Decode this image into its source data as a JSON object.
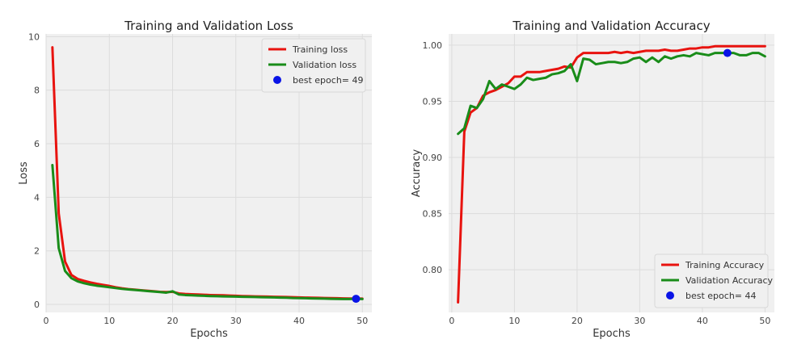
{
  "chart_data": [
    {
      "type": "line",
      "title": "Training and Validation Loss",
      "xlabel": "Epochs",
      "ylabel": "Loss",
      "xlim": [
        0,
        51.5
      ],
      "ylim": [
        -0.3,
        10.1
      ],
      "xticks": [
        0,
        10,
        20,
        30,
        40,
        50
      ],
      "yticks": [
        0,
        2,
        4,
        6,
        8,
        10
      ],
      "grid": true,
      "legend_position": "top-right",
      "x": [
        1,
        2,
        3,
        4,
        5,
        6,
        7,
        8,
        9,
        10,
        11,
        12,
        13,
        14,
        15,
        16,
        17,
        18,
        19,
        20,
        21,
        22,
        23,
        24,
        25,
        26,
        27,
        28,
        29,
        30,
        31,
        32,
        33,
        34,
        35,
        36,
        37,
        38,
        39,
        40,
        41,
        42,
        43,
        44,
        45,
        46,
        47,
        48,
        49,
        50
      ],
      "series": [
        {
          "name": "Training loss",
          "color": "#e8130f",
          "values": [
            9.6,
            3.4,
            1.6,
            1.1,
            0.95,
            0.88,
            0.82,
            0.77,
            0.73,
            0.69,
            0.64,
            0.6,
            0.57,
            0.55,
            0.53,
            0.51,
            0.49,
            0.47,
            0.46,
            0.47,
            0.41,
            0.39,
            0.38,
            0.37,
            0.36,
            0.35,
            0.345,
            0.34,
            0.33,
            0.32,
            0.31,
            0.305,
            0.3,
            0.295,
            0.29,
            0.285,
            0.28,
            0.275,
            0.27,
            0.26,
            0.255,
            0.25,
            0.245,
            0.24,
            0.235,
            0.23,
            0.225,
            0.22,
            0.22,
            0.215
          ]
        },
        {
          "name": "Validation loss",
          "color": "#198c19",
          "values": [
            5.2,
            2.1,
            1.25,
            0.98,
            0.86,
            0.79,
            0.74,
            0.7,
            0.67,
            0.64,
            0.61,
            0.58,
            0.56,
            0.54,
            0.52,
            0.5,
            0.48,
            0.46,
            0.44,
            0.49,
            0.37,
            0.35,
            0.34,
            0.33,
            0.32,
            0.31,
            0.305,
            0.3,
            0.295,
            0.29,
            0.285,
            0.28,
            0.275,
            0.27,
            0.265,
            0.26,
            0.255,
            0.25,
            0.24,
            0.235,
            0.23,
            0.225,
            0.22,
            0.215,
            0.21,
            0.205,
            0.2,
            0.2,
            0.21,
            0.2
          ]
        }
      ],
      "best_point": {
        "label": "best epoch= 49",
        "x": 49,
        "y": 0.21,
        "color": "#0a14e6"
      }
    },
    {
      "type": "line",
      "title": "Training and Validation Accuracy",
      "xlabel": "Epochs",
      "ylabel": "Accuracy",
      "xlim": [
        -0.5,
        51.5
      ],
      "ylim": [
        0.762,
        1.01
      ],
      "xticks": [
        0,
        10,
        20,
        30,
        40,
        50
      ],
      "yticks": [
        0.8,
        0.85,
        0.9,
        0.95,
        1.0
      ],
      "ytick_labels": [
        "0.80",
        "0.85",
        "0.90",
        "0.95",
        "1.00"
      ],
      "grid": true,
      "legend_position": "bottom-right",
      "x": [
        1,
        2,
        3,
        4,
        5,
        6,
        7,
        8,
        9,
        10,
        11,
        12,
        13,
        14,
        15,
        16,
        17,
        18,
        19,
        20,
        21,
        22,
        23,
        24,
        25,
        26,
        27,
        28,
        29,
        30,
        31,
        32,
        33,
        34,
        35,
        36,
        37,
        38,
        39,
        40,
        41,
        42,
        43,
        44,
        45,
        46,
        47,
        48,
        49,
        50
      ],
      "series": [
        {
          "name": "Training Accuracy",
          "color": "#e8130f",
          "values": [
            0.771,
            0.923,
            0.94,
            0.944,
            0.955,
            0.958,
            0.96,
            0.963,
            0.966,
            0.972,
            0.972,
            0.976,
            0.976,
            0.976,
            0.977,
            0.978,
            0.979,
            0.981,
            0.98,
            0.989,
            0.993,
            0.993,
            0.993,
            0.993,
            0.993,
            0.994,
            0.993,
            0.994,
            0.993,
            0.994,
            0.995,
            0.995,
            0.995,
            0.996,
            0.995,
            0.995,
            0.996,
            0.997,
            0.997,
            0.998,
            0.998,
            0.999,
            0.999,
            0.999,
            0.999,
            0.999,
            0.999,
            0.999,
            0.999,
            0.999
          ]
        },
        {
          "name": "Validation Accuracy",
          "color": "#198c19",
          "values": [
            0.921,
            0.926,
            0.946,
            0.944,
            0.952,
            0.968,
            0.961,
            0.965,
            0.963,
            0.961,
            0.965,
            0.971,
            0.969,
            0.97,
            0.971,
            0.974,
            0.975,
            0.977,
            0.983,
            0.968,
            0.988,
            0.987,
            0.983,
            0.984,
            0.985,
            0.985,
            0.984,
            0.985,
            0.988,
            0.989,
            0.985,
            0.989,
            0.985,
            0.99,
            0.988,
            0.99,
            0.991,
            0.99,
            0.993,
            0.992,
            0.991,
            0.993,
            0.993,
            0.993,
            0.993,
            0.991,
            0.991,
            0.993,
            0.993,
            0.99
          ]
        }
      ],
      "best_point": {
        "label": "best epoch= 44",
        "x": 44,
        "y": 0.993,
        "color": "#0a14e6"
      }
    }
  ]
}
